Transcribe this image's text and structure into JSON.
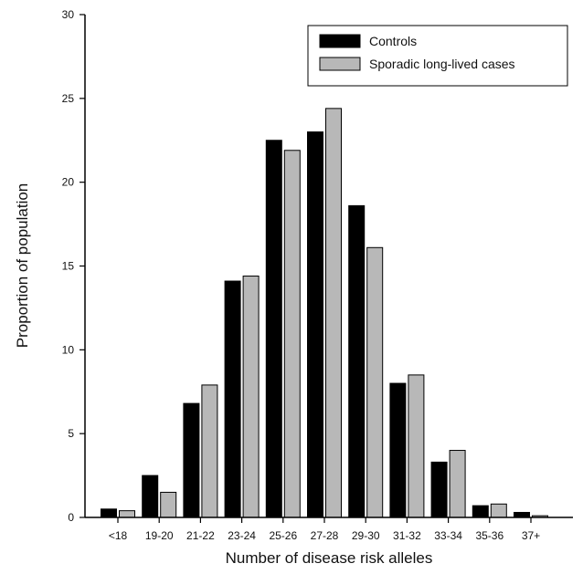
{
  "chart_data": {
    "type": "bar",
    "xlabel": "Number of disease risk alleles",
    "ylabel": "Proportion of population",
    "ylim": [
      0,
      30
    ],
    "yticks": [
      0,
      5,
      10,
      15,
      20,
      25,
      30
    ],
    "grid": false,
    "legend_position": "top-right",
    "categories": [
      "<18",
      "19-20",
      "21-22",
      "23-24",
      "25-26",
      "27-28",
      "29-30",
      "31-32",
      "33-34",
      "35-36",
      "37+"
    ],
    "series": [
      {
        "name": "Controls",
        "color": "#000000",
        "values": [
          0.5,
          2.5,
          6.8,
          14.1,
          22.5,
          23.0,
          18.6,
          8.0,
          3.3,
          0.7,
          0.3
        ]
      },
      {
        "name": "Sporadic long-lived cases",
        "color": "#b8b8b8",
        "values": [
          0.4,
          1.5,
          7.9,
          14.4,
          21.9,
          24.4,
          16.1,
          8.5,
          4.0,
          0.8,
          0.1
        ]
      }
    ]
  }
}
